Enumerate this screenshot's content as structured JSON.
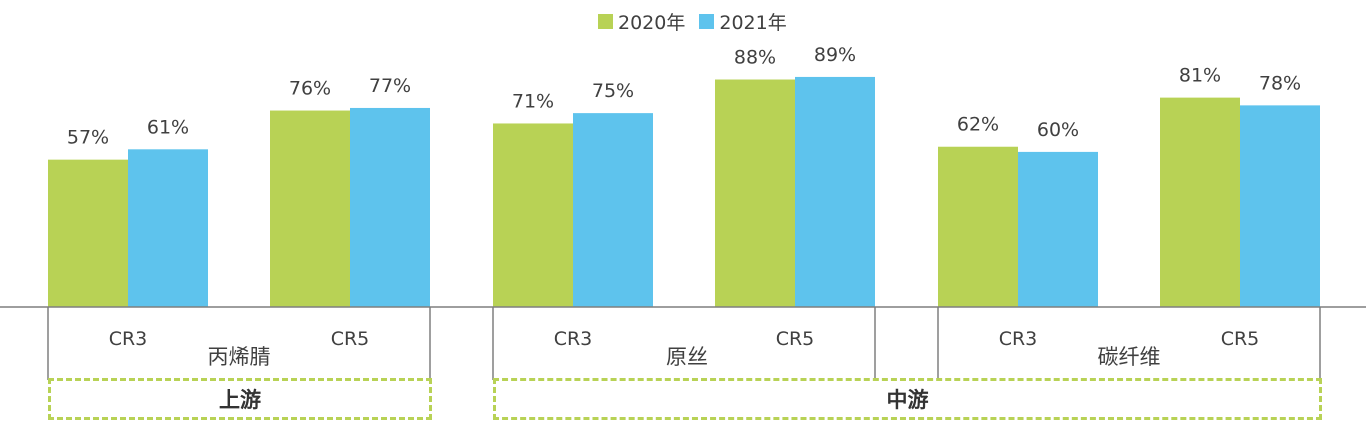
{
  "chart_data": {
    "type": "bar",
    "series": [
      {
        "name": "2020年",
        "color": "#b8d255",
        "values": [
          57,
          76,
          71,
          88,
          62,
          81
        ]
      },
      {
        "name": "2021年",
        "color": "#5ec3ed",
        "values": [
          61,
          77,
          75,
          89,
          60,
          78
        ]
      }
    ],
    "categories": [
      "CR3",
      "CR5",
      "CR3",
      "CR5",
      "CR3",
      "CR5"
    ],
    "groups": [
      "丙烯腈",
      "原丝",
      "碳纤维"
    ],
    "data_labels": [
      [
        "57%",
        "76%",
        "71%",
        "88%",
        "62%",
        "81%"
      ],
      [
        "61%",
        "77%",
        "75%",
        "89%",
        "60%",
        "78%"
      ]
    ],
    "segments": [
      "上游",
      "中游"
    ],
    "value_unit": "%",
    "ylim": [
      0,
      100
    ],
    "legend_position": "top-center",
    "grid": false
  }
}
